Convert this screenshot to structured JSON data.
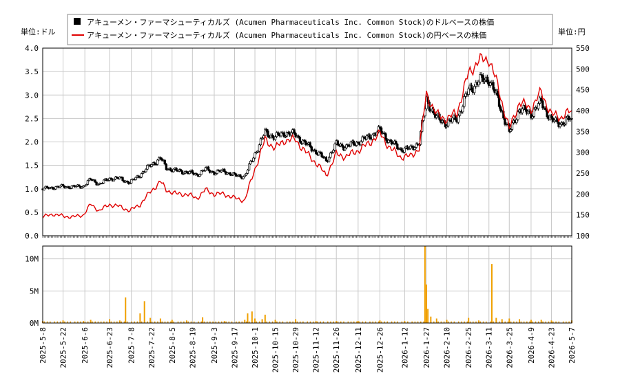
{
  "legend": {
    "usd_label": "アキューメン・ファーマシューティカルズ (Acumen Pharmaceuticals Inc. Common Stock)のドルベースの株価",
    "jpy_label": "アキューメン・ファーマシューティカルズ (Acumen Pharmaceuticals Inc. Common Stock)の円ベースの株価"
  },
  "left_unit": "単位:ドル",
  "right_unit": "単位:円",
  "colors": {
    "usd": "#000000",
    "jpy": "#e00000",
    "volume": "#f0a000",
    "grid": "#c8c8c8"
  },
  "chart_data": {
    "type": "line",
    "price_panel": {
      "y_left_ticks": [
        "0.0",
        "0.5",
        "1.0",
        "1.5",
        "2.0",
        "2.5",
        "3.0",
        "3.5",
        "4.0"
      ],
      "y_left_lim": [
        0,
        4
      ],
      "y_right_ticks": [
        "100",
        "150",
        "200",
        "250",
        "300",
        "350",
        "400",
        "450",
        "500",
        "550"
      ],
      "y_right_lim": [
        100,
        550
      ],
      "series": [
        {
          "name": "アキューメン・ファーマシューティカルズ (Acumen Pharmaceuticals Inc. Common Stock)のドルベースの株価",
          "axis": "left",
          "points": [
            [
              "2025-05-08",
              1.0
            ],
            [
              "2025-05-15",
              1.03
            ],
            [
              "2025-05-22",
              1.05
            ],
            [
              "2025-05-29",
              1.04
            ],
            [
              "2025-06-05",
              1.06
            ],
            [
              "2025-06-10",
              1.2
            ],
            [
              "2025-06-16",
              1.1
            ],
            [
              "2025-06-23",
              1.22
            ],
            [
              "2025-06-30",
              1.22
            ],
            [
              "2025-07-07",
              1.13
            ],
            [
              "2025-07-14",
              1.3
            ],
            [
              "2025-07-21",
              1.5
            ],
            [
              "2025-07-28",
              1.65
            ],
            [
              "2025-08-01",
              1.45
            ],
            [
              "2025-08-08",
              1.38
            ],
            [
              "2025-08-15",
              1.36
            ],
            [
              "2025-08-22",
              1.3
            ],
            [
              "2025-08-28",
              1.42
            ],
            [
              "2025-09-03",
              1.35
            ],
            [
              "2025-09-10",
              1.38
            ],
            [
              "2025-09-17",
              1.28
            ],
            [
              "2025-09-24",
              1.27
            ],
            [
              "2025-10-01",
              1.75
            ],
            [
              "2025-10-08",
              2.2
            ],
            [
              "2025-10-15",
              2.1
            ],
            [
              "2025-10-22",
              2.2
            ],
            [
              "2025-10-29",
              2.15
            ],
            [
              "2025-11-05",
              1.95
            ],
            [
              "2025-11-12",
              1.8
            ],
            [
              "2025-11-19",
              1.6
            ],
            [
              "2025-11-26",
              1.95
            ],
            [
              "2025-12-03",
              1.9
            ],
            [
              "2025-12-11",
              2.0
            ],
            [
              "2025-12-18",
              2.1
            ],
            [
              "2025-12-26",
              2.25
            ],
            [
              "2026-01-02",
              2.0
            ],
            [
              "2026-01-09",
              1.85
            ],
            [
              "2026-01-16",
              1.85
            ],
            [
              "2026-01-22",
              2.0
            ],
            [
              "2026-01-27",
              2.9
            ],
            [
              "2026-02-03",
              2.5
            ],
            [
              "2026-02-10",
              2.4
            ],
            [
              "2026-02-17",
              2.5
            ],
            [
              "2026-02-25",
              3.1
            ],
            [
              "2026-03-04",
              3.3
            ],
            [
              "2026-03-11",
              3.35
            ],
            [
              "2026-03-17",
              2.9
            ],
            [
              "2026-03-25",
              2.2
            ],
            [
              "2026-04-01",
              2.7
            ],
            [
              "2026-04-09",
              2.6
            ],
            [
              "2026-04-16",
              2.85
            ],
            [
              "2026-04-23",
              2.45
            ],
            [
              "2026-04-30",
              2.4
            ],
            [
              "2026-05-07",
              2.5
            ]
          ]
        },
        {
          "name": "アキューメン・ファーマシューティカルズ (Acumen Pharmaceuticals Inc. Common Stock)の円ベースの株価",
          "axis": "right",
          "points": [
            [
              "2025-05-08",
              145
            ],
            [
              "2025-05-15",
              152
            ],
            [
              "2025-05-22",
              147
            ],
            [
              "2025-05-29",
              145
            ],
            [
              "2025-06-05",
              150
            ],
            [
              "2025-06-10",
              175
            ],
            [
              "2025-06-16",
              160
            ],
            [
              "2025-06-23",
              175
            ],
            [
              "2025-06-30",
              170
            ],
            [
              "2025-07-07",
              160
            ],
            [
              "2025-07-14",
              175
            ],
            [
              "2025-07-21",
              205
            ],
            [
              "2025-07-28",
              230
            ],
            [
              "2025-08-01",
              210
            ],
            [
              "2025-08-08",
              200
            ],
            [
              "2025-08-15",
              200
            ],
            [
              "2025-08-22",
              190
            ],
            [
              "2025-08-28",
              210
            ],
            [
              "2025-09-03",
              200
            ],
            [
              "2025-09-10",
              200
            ],
            [
              "2025-09-17",
              190
            ],
            [
              "2025-09-24",
              185
            ],
            [
              "2025-10-01",
              260
            ],
            [
              "2025-10-08",
              330
            ],
            [
              "2025-10-15",
              310
            ],
            [
              "2025-10-22",
              330
            ],
            [
              "2025-10-29",
              330
            ],
            [
              "2025-11-05",
              300
            ],
            [
              "2025-11-12",
              275
            ],
            [
              "2025-11-19",
              245
            ],
            [
              "2025-11-26",
              295
            ],
            [
              "2025-12-03",
              290
            ],
            [
              "2025-12-11",
              305
            ],
            [
              "2025-12-18",
              320
            ],
            [
              "2025-12-26",
              345
            ],
            [
              "2026-01-02",
              310
            ],
            [
              "2026-01-09",
              290
            ],
            [
              "2026-01-16",
              290
            ],
            [
              "2026-01-22",
              310
            ],
            [
              "2026-01-27",
              440
            ],
            [
              "2026-02-03",
              390
            ],
            [
              "2026-02-10",
              380
            ],
            [
              "2026-02-17",
              395
            ],
            [
              "2026-02-25",
              490
            ],
            [
              "2026-03-04",
              520
            ],
            [
              "2026-03-11",
              525
            ],
            [
              "2026-03-17",
              460
            ],
            [
              "2026-03-25",
              355
            ],
            [
              "2026-04-01",
              420
            ],
            [
              "2026-04-09",
              405
            ],
            [
              "2026-04-16",
              445
            ],
            [
              "2026-04-23",
              390
            ],
            [
              "2026-04-30",
              385
            ],
            [
              "2026-05-07",
              400
            ]
          ]
        }
      ]
    },
    "volume_panel": {
      "y_ticks": [
        "0M",
        "5M",
        "10M"
      ],
      "ylim": [
        0,
        12
      ],
      "bars": [
        [
          "2025-05-08",
          0.3
        ],
        [
          "2025-05-22",
          0.4
        ],
        [
          "2025-06-05",
          0.3
        ],
        [
          "2025-06-10",
          0.5
        ],
        [
          "2025-06-23",
          0.6
        ],
        [
          "2025-06-30",
          0.4
        ],
        [
          "2025-07-04",
          4.0
        ],
        [
          "2025-07-14",
          1.5
        ],
        [
          "2025-07-17",
          3.4
        ],
        [
          "2025-07-21",
          0.8
        ],
        [
          "2025-07-28",
          0.7
        ],
        [
          "2025-08-05",
          0.5
        ],
        [
          "2025-08-15",
          0.4
        ],
        [
          "2025-08-26",
          0.9
        ],
        [
          "2025-09-10",
          0.3
        ],
        [
          "2025-09-24",
          0.5
        ],
        [
          "2025-09-26",
          1.5
        ],
        [
          "2025-09-29",
          1.8
        ],
        [
          "2025-10-01",
          0.7
        ],
        [
          "2025-10-06",
          0.6
        ],
        [
          "2025-10-08",
          1.3
        ],
        [
          "2025-10-15",
          0.5
        ],
        [
          "2025-10-29",
          0.6
        ],
        [
          "2025-11-12",
          0.3
        ],
        [
          "2025-11-26",
          0.3
        ],
        [
          "2025-12-11",
          0.3
        ],
        [
          "2025-12-26",
          0.4
        ],
        [
          "2026-01-12",
          0.3
        ],
        [
          "2026-01-26",
          12.0
        ],
        [
          "2026-01-27",
          6.0
        ],
        [
          "2026-01-28",
          2.2
        ],
        [
          "2026-01-30",
          1.0
        ],
        [
          "2026-02-03",
          0.7
        ],
        [
          "2026-02-10",
          0.5
        ],
        [
          "2026-02-25",
          0.8
        ],
        [
          "2026-03-04",
          0.4
        ],
        [
          "2026-03-13",
          9.2
        ],
        [
          "2026-03-16",
          0.8
        ],
        [
          "2026-03-20",
          0.6
        ],
        [
          "2026-03-25",
          0.7
        ],
        [
          "2026-04-01",
          0.6
        ],
        [
          "2026-04-09",
          0.5
        ],
        [
          "2026-04-16",
          0.5
        ],
        [
          "2026-04-23",
          0.4
        ],
        [
          "2026-05-07",
          0.4
        ]
      ]
    },
    "x_ticks": [
      "2025-5-8",
      "2025-5-22",
      "2025-6-6",
      "2025-6-23",
      "2025-7-8",
      "2025-7-22",
      "2025-8-5",
      "2025-8-19",
      "2025-9-3",
      "2025-9-17",
      "2025-10-1",
      "2025-10-15",
      "2025-10-29",
      "2025-11-12",
      "2025-11-26",
      "2025-12-11",
      "2025-12-26",
      "2026-1-12",
      "2026-1-27",
      "2026-2-10",
      "2026-2-25",
      "2026-3-11",
      "2026-3-25",
      "2026-4-9",
      "2026-4-23",
      "2026-5-7"
    ],
    "x_range": [
      "2025-05-08",
      "2026-05-07"
    ],
    "grid": true,
    "legend_position": "top"
  }
}
